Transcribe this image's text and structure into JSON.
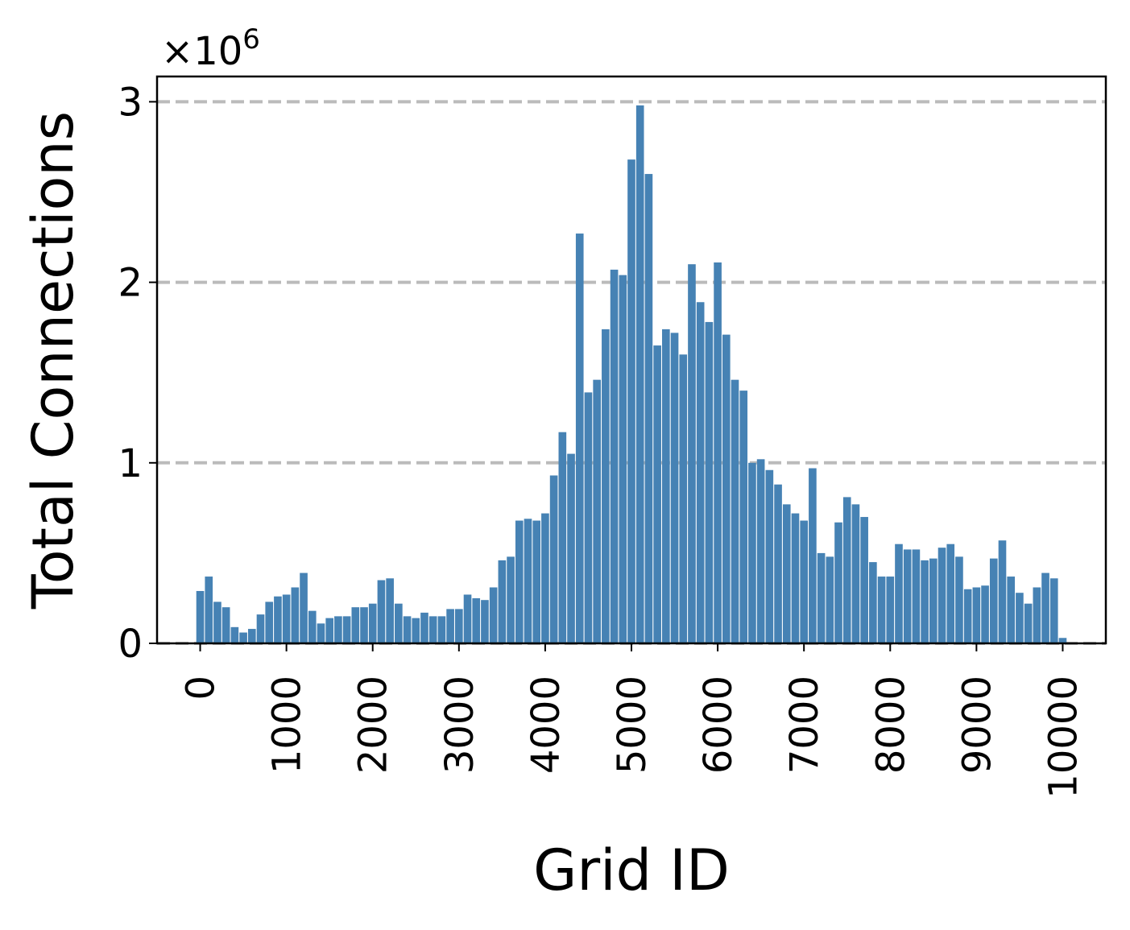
{
  "chart_data": {
    "type": "bar",
    "xlabel": "Grid ID",
    "ylabel": "Total Connections",
    "y_multiplier": {
      "base": "×10",
      "exponent": "6"
    },
    "color": "#4682b4",
    "grid": true,
    "grid_color": "#bbbbbb",
    "x": [
      0,
      100,
      200,
      300,
      400,
      500,
      600,
      700,
      800,
      900,
      1000,
      1100,
      1200,
      1300,
      1400,
      1500,
      1600,
      1700,
      1800,
      1900,
      2000,
      2100,
      2200,
      2300,
      2400,
      2500,
      2600,
      2700,
      2800,
      2900,
      3000,
      3100,
      3200,
      3300,
      3400,
      3500,
      3600,
      3700,
      3800,
      3900,
      4000,
      4100,
      4200,
      4300,
      4400,
      4500,
      4600,
      4700,
      4800,
      4900,
      5000,
      5100,
      5200,
      5300,
      5400,
      5500,
      5600,
      5700,
      5800,
      5900,
      6000,
      6100,
      6200,
      6300,
      6400,
      6500,
      6600,
      6700,
      6800,
      6900,
      7000,
      7100,
      7200,
      7300,
      7400,
      7500,
      7600,
      7700,
      7800,
      7900,
      8000,
      8100,
      8200,
      8300,
      8400,
      8500,
      8600,
      8700,
      8800,
      8900,
      9000,
      9100,
      9200,
      9300,
      9400,
      9500,
      9600,
      9700,
      9800,
      9900,
      10000
    ],
    "values": [
      0.29,
      0.37,
      0.23,
      0.2,
      0.09,
      0.06,
      0.08,
      0.16,
      0.23,
      0.26,
      0.27,
      0.31,
      0.39,
      0.18,
      0.11,
      0.14,
      0.15,
      0.15,
      0.2,
      0.2,
      0.22,
      0.35,
      0.36,
      0.22,
      0.15,
      0.14,
      0.17,
      0.15,
      0.15,
      0.19,
      0.19,
      0.27,
      0.25,
      0.24,
      0.31,
      0.46,
      0.48,
      0.68,
      0.69,
      0.68,
      0.72,
      0.93,
      1.17,
      1.05,
      2.27,
      1.39,
      1.46,
      1.74,
      2.07,
      2.04,
      2.68,
      2.98,
      2.6,
      1.65,
      1.74,
      1.72,
      1.6,
      2.1,
      1.89,
      1.78,
      2.11,
      1.71,
      1.46,
      1.4,
      1.0,
      1.02,
      0.96,
      0.88,
      0.77,
      0.72,
      0.68,
      0.97,
      0.5,
      0.48,
      0.67,
      0.81,
      0.77,
      0.7,
      0.45,
      0.37,
      0.37,
      0.55,
      0.52,
      0.52,
      0.46,
      0.47,
      0.53,
      0.55,
      0.48,
      0.3,
      0.31,
      0.32,
      0.47,
      0.57,
      0.37,
      0.28,
      0.22,
      0.31,
      0.39,
      0.36,
      0.03
    ],
    "bar_width": 90,
    "xlim": [
      -500,
      10500
    ],
    "xticks": [
      0,
      1000,
      2000,
      3000,
      4000,
      5000,
      6000,
      7000,
      8000,
      9000,
      10000
    ],
    "ylim": [
      0,
      3.14
    ],
    "yticks": [
      0,
      1,
      2,
      3
    ]
  }
}
